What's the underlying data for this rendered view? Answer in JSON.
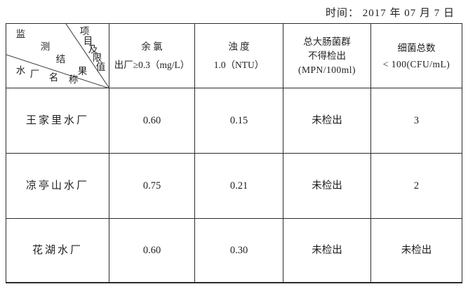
{
  "meta": {
    "date_label": "时间：  2017 年 07 月 7 日"
  },
  "table": {
    "corner": {
      "item_label": "项目及限值",
      "result_label": "监测结果",
      "plant_label": "水厂名称"
    },
    "columns": [
      {
        "name": "余 氯",
        "limit": "出厂≥0.3（mg/L）",
        "unit": ""
      },
      {
        "name": "浊 度",
        "limit": "1.0（NTU）",
        "unit": ""
      },
      {
        "name": "总大肠菌群",
        "limit": "不得检出",
        "unit": "(MPN/100ml)"
      },
      {
        "name": "细菌总数",
        "limit": "< 100(CFU/mL)",
        "unit": ""
      }
    ],
    "rows": [
      {
        "plant": "王家里水厂",
        "values": [
          "0.60",
          "0.15",
          "未检出",
          "3"
        ]
      },
      {
        "plant": "凉亭山水厂",
        "values": [
          "0.75",
          "0.21",
          "未检出",
          "2"
        ]
      },
      {
        "plant": "花湖水厂",
        "values": [
          "0.60",
          "0.30",
          "未检出",
          "未检出"
        ]
      }
    ]
  },
  "chart_data": {
    "type": "table",
    "title": "时间： 2017 年 07 月 7 日",
    "row_header": "水厂名称",
    "column_headers": [
      "余氯 出厂≥0.3（mg/L）",
      "浊度 1.0（NTU）",
      "总大肠菌群 不得检出 (MPN/100ml)",
      "细菌总数 < 100(CFU/mL)"
    ],
    "rows": [
      [
        "王家里水厂",
        "0.60",
        "0.15",
        "未检出",
        "3"
      ],
      [
        "凉亭山水厂",
        "0.75",
        "0.21",
        "未检出",
        "2"
      ],
      [
        "花湖水厂",
        "0.60",
        "0.30",
        "未检出",
        "未检出"
      ]
    ]
  }
}
